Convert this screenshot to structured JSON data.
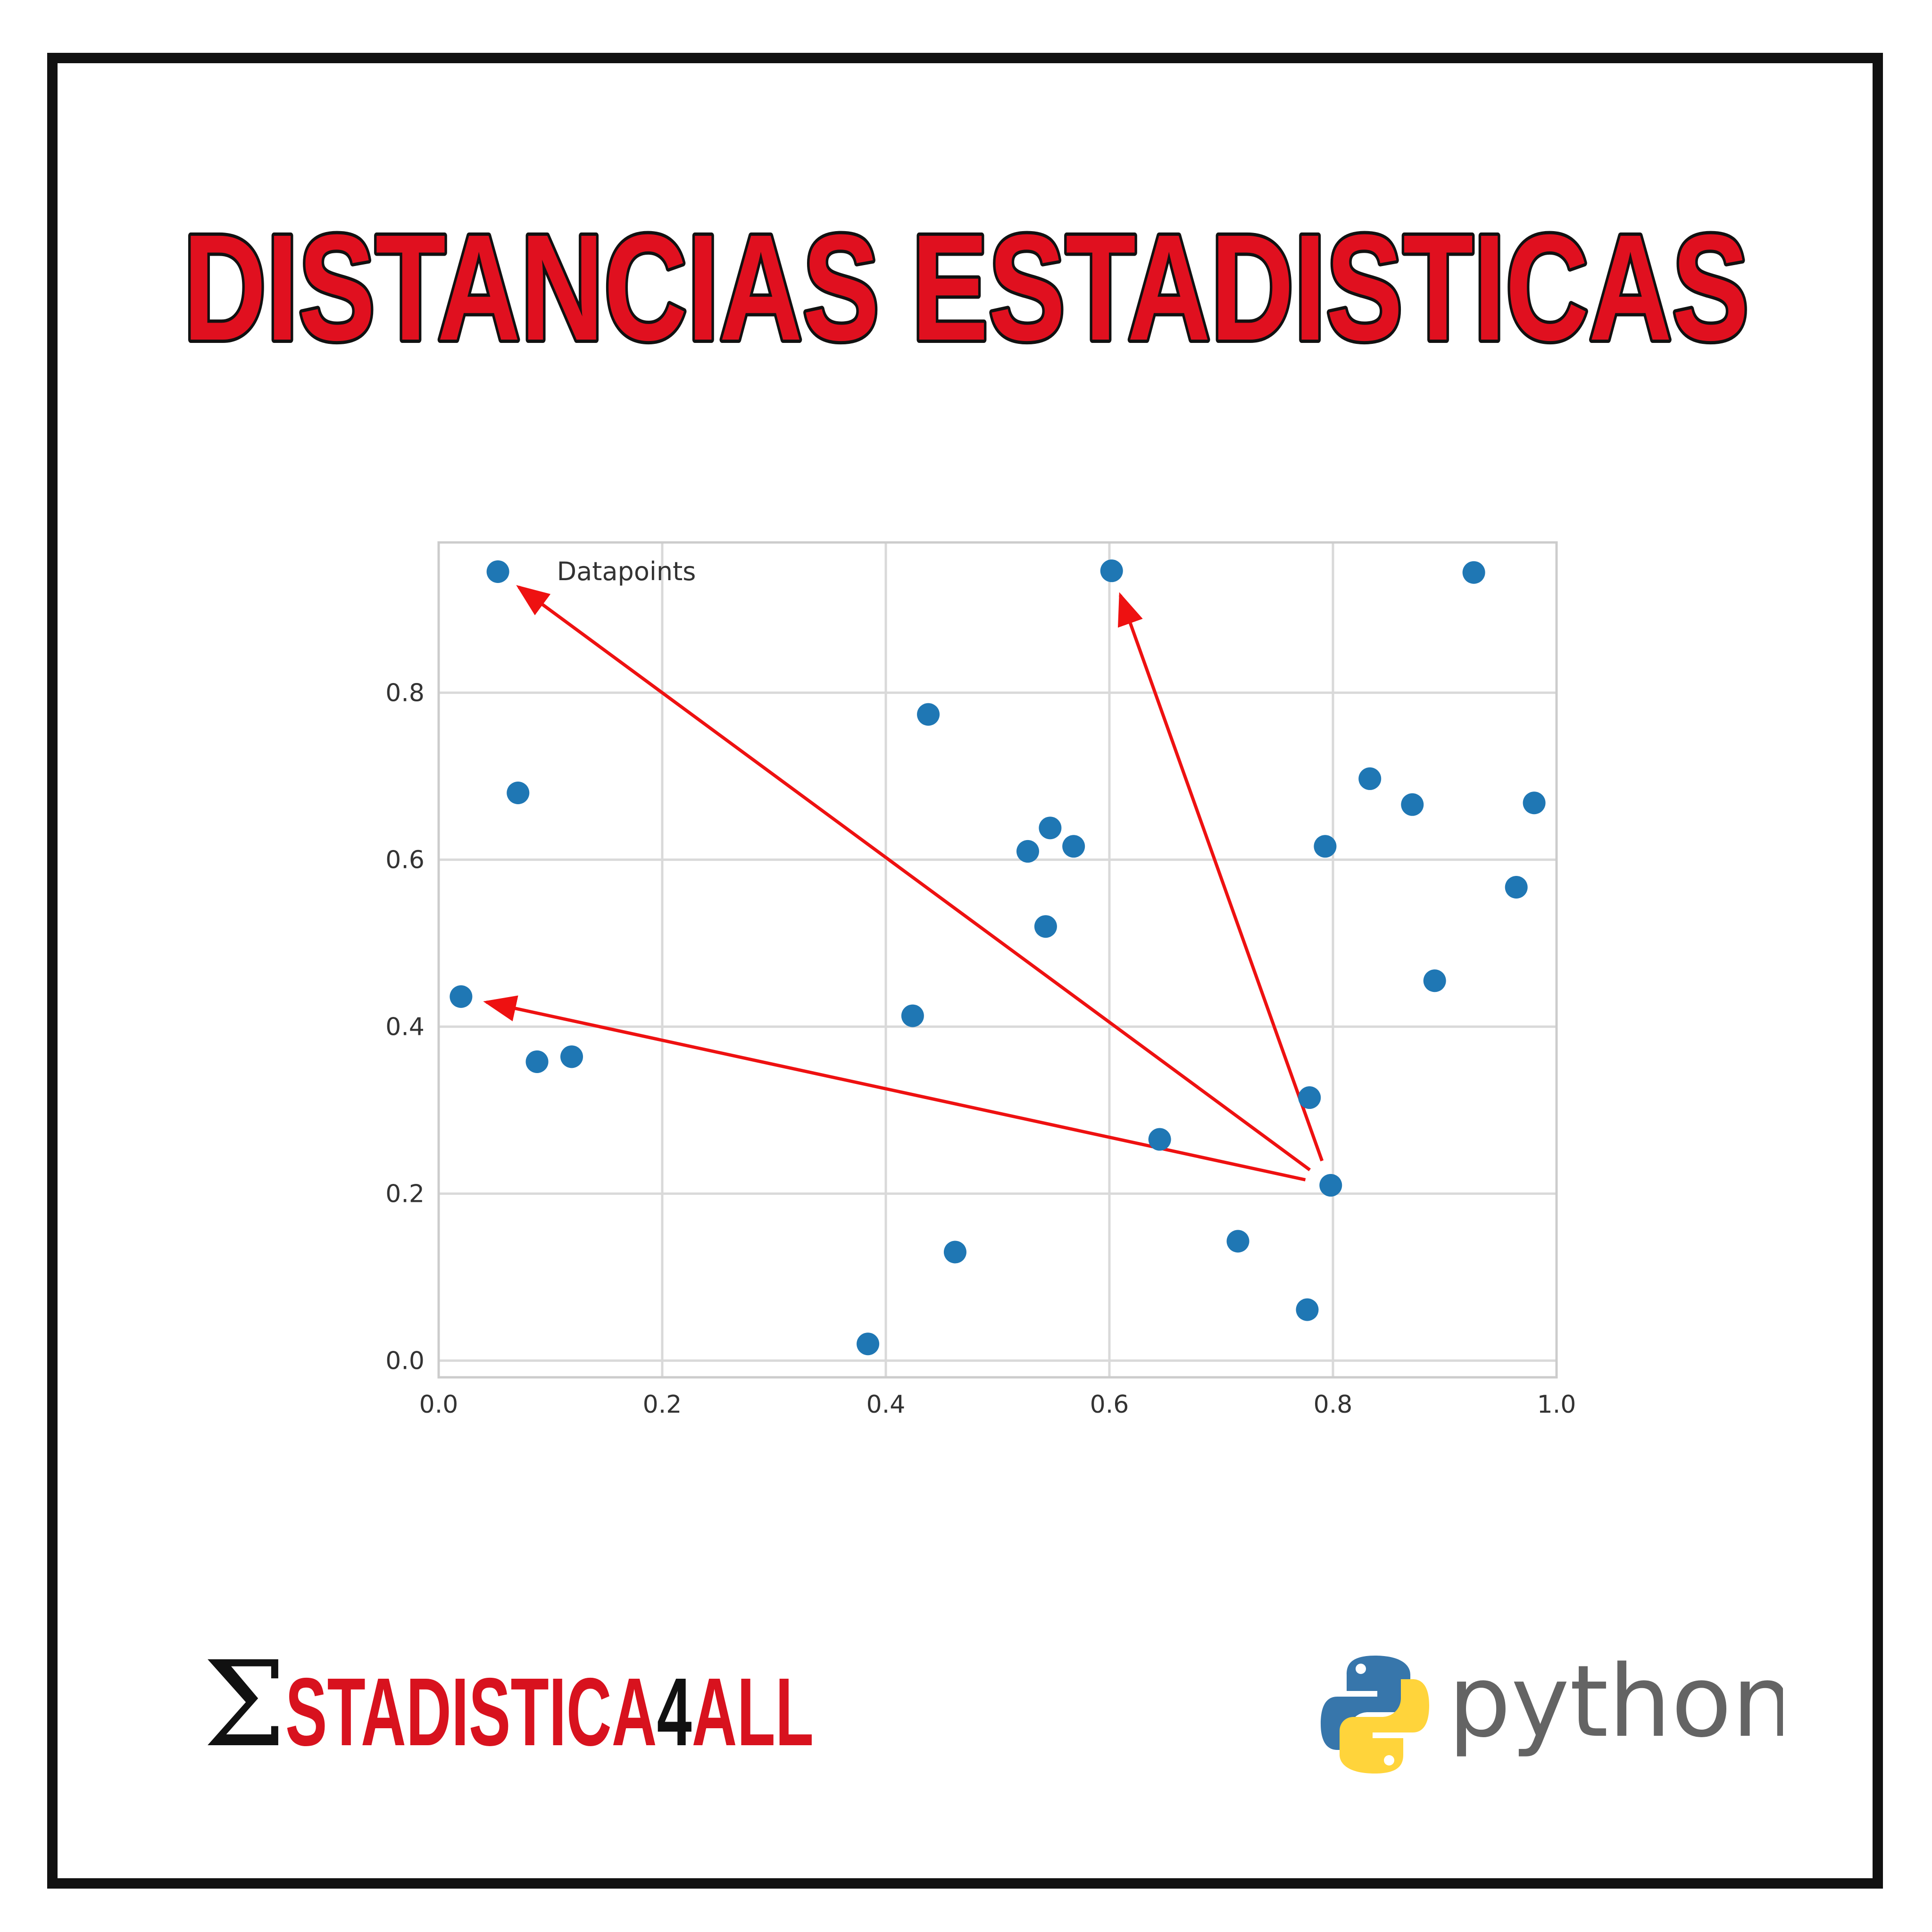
{
  "headline": "DISTANCIAS ESTADISTICAS",
  "colors": {
    "headline_fill": "#e0101f",
    "headline_stroke": "#111111",
    "frame": "#111111",
    "points": "#1f77b4",
    "arrows": "#ee1111",
    "grid": "#d9d9d9",
    "brand_red": "#d8121e",
    "brand_black": "#111111",
    "python_blue": "#3776ab",
    "python_yellow": "#ffd43b",
    "python_text": "#646464"
  },
  "chart_data": {
    "type": "scatter",
    "title": "",
    "xlabel": "",
    "ylabel": "",
    "xlim": [
      0.0,
      1.0
    ],
    "ylim": [
      -0.02,
      0.98
    ],
    "xticks": [
      "0.0",
      "0.2",
      "0.4",
      "0.6",
      "0.8",
      "1.0"
    ],
    "yticks": [
      "0.0",
      "0.2",
      "0.4",
      "0.6",
      "0.8"
    ],
    "grid": true,
    "legend": {
      "entries": [
        "Datapoints"
      ],
      "position": "top-left"
    },
    "series": [
      {
        "name": "Datapoints",
        "color": "#1f77b4",
        "x": [
          0.053,
          0.071,
          0.02,
          0.088,
          0.119,
          0.384,
          0.424,
          0.438,
          0.462,
          0.527,
          0.543,
          0.547,
          0.568,
          0.602,
          0.645,
          0.715,
          0.777,
          0.779,
          0.793,
          0.798,
          0.833,
          0.871,
          0.891,
          0.926,
          0.964,
          0.98
        ],
        "y": [
          0.945,
          0.68,
          0.436,
          0.358,
          0.364,
          0.02,
          0.413,
          0.774,
          0.13,
          0.61,
          0.52,
          0.638,
          0.616,
          0.946,
          0.265,
          0.143,
          0.061,
          0.315,
          0.616,
          0.21,
          0.697,
          0.666,
          0.455,
          0.944,
          0.567,
          0.668
        ]
      }
    ],
    "annotations": [
      {
        "type": "arrow",
        "from": [
          0.798,
          0.21
        ],
        "to": [
          0.053,
          0.945
        ]
      },
      {
        "type": "arrow",
        "from": [
          0.798,
          0.21
        ],
        "to": [
          0.602,
          0.946
        ]
      },
      {
        "type": "arrow",
        "from": [
          0.798,
          0.21
        ],
        "to": [
          0.02,
          0.436
        ]
      }
    ]
  },
  "logos": {
    "left": {
      "sigma": "Σ",
      "text_a": "STADISTICA",
      "text_b": "4",
      "text_c": "ALL"
    },
    "right": {
      "icon": "python-logo-icon",
      "text": "python"
    }
  }
}
